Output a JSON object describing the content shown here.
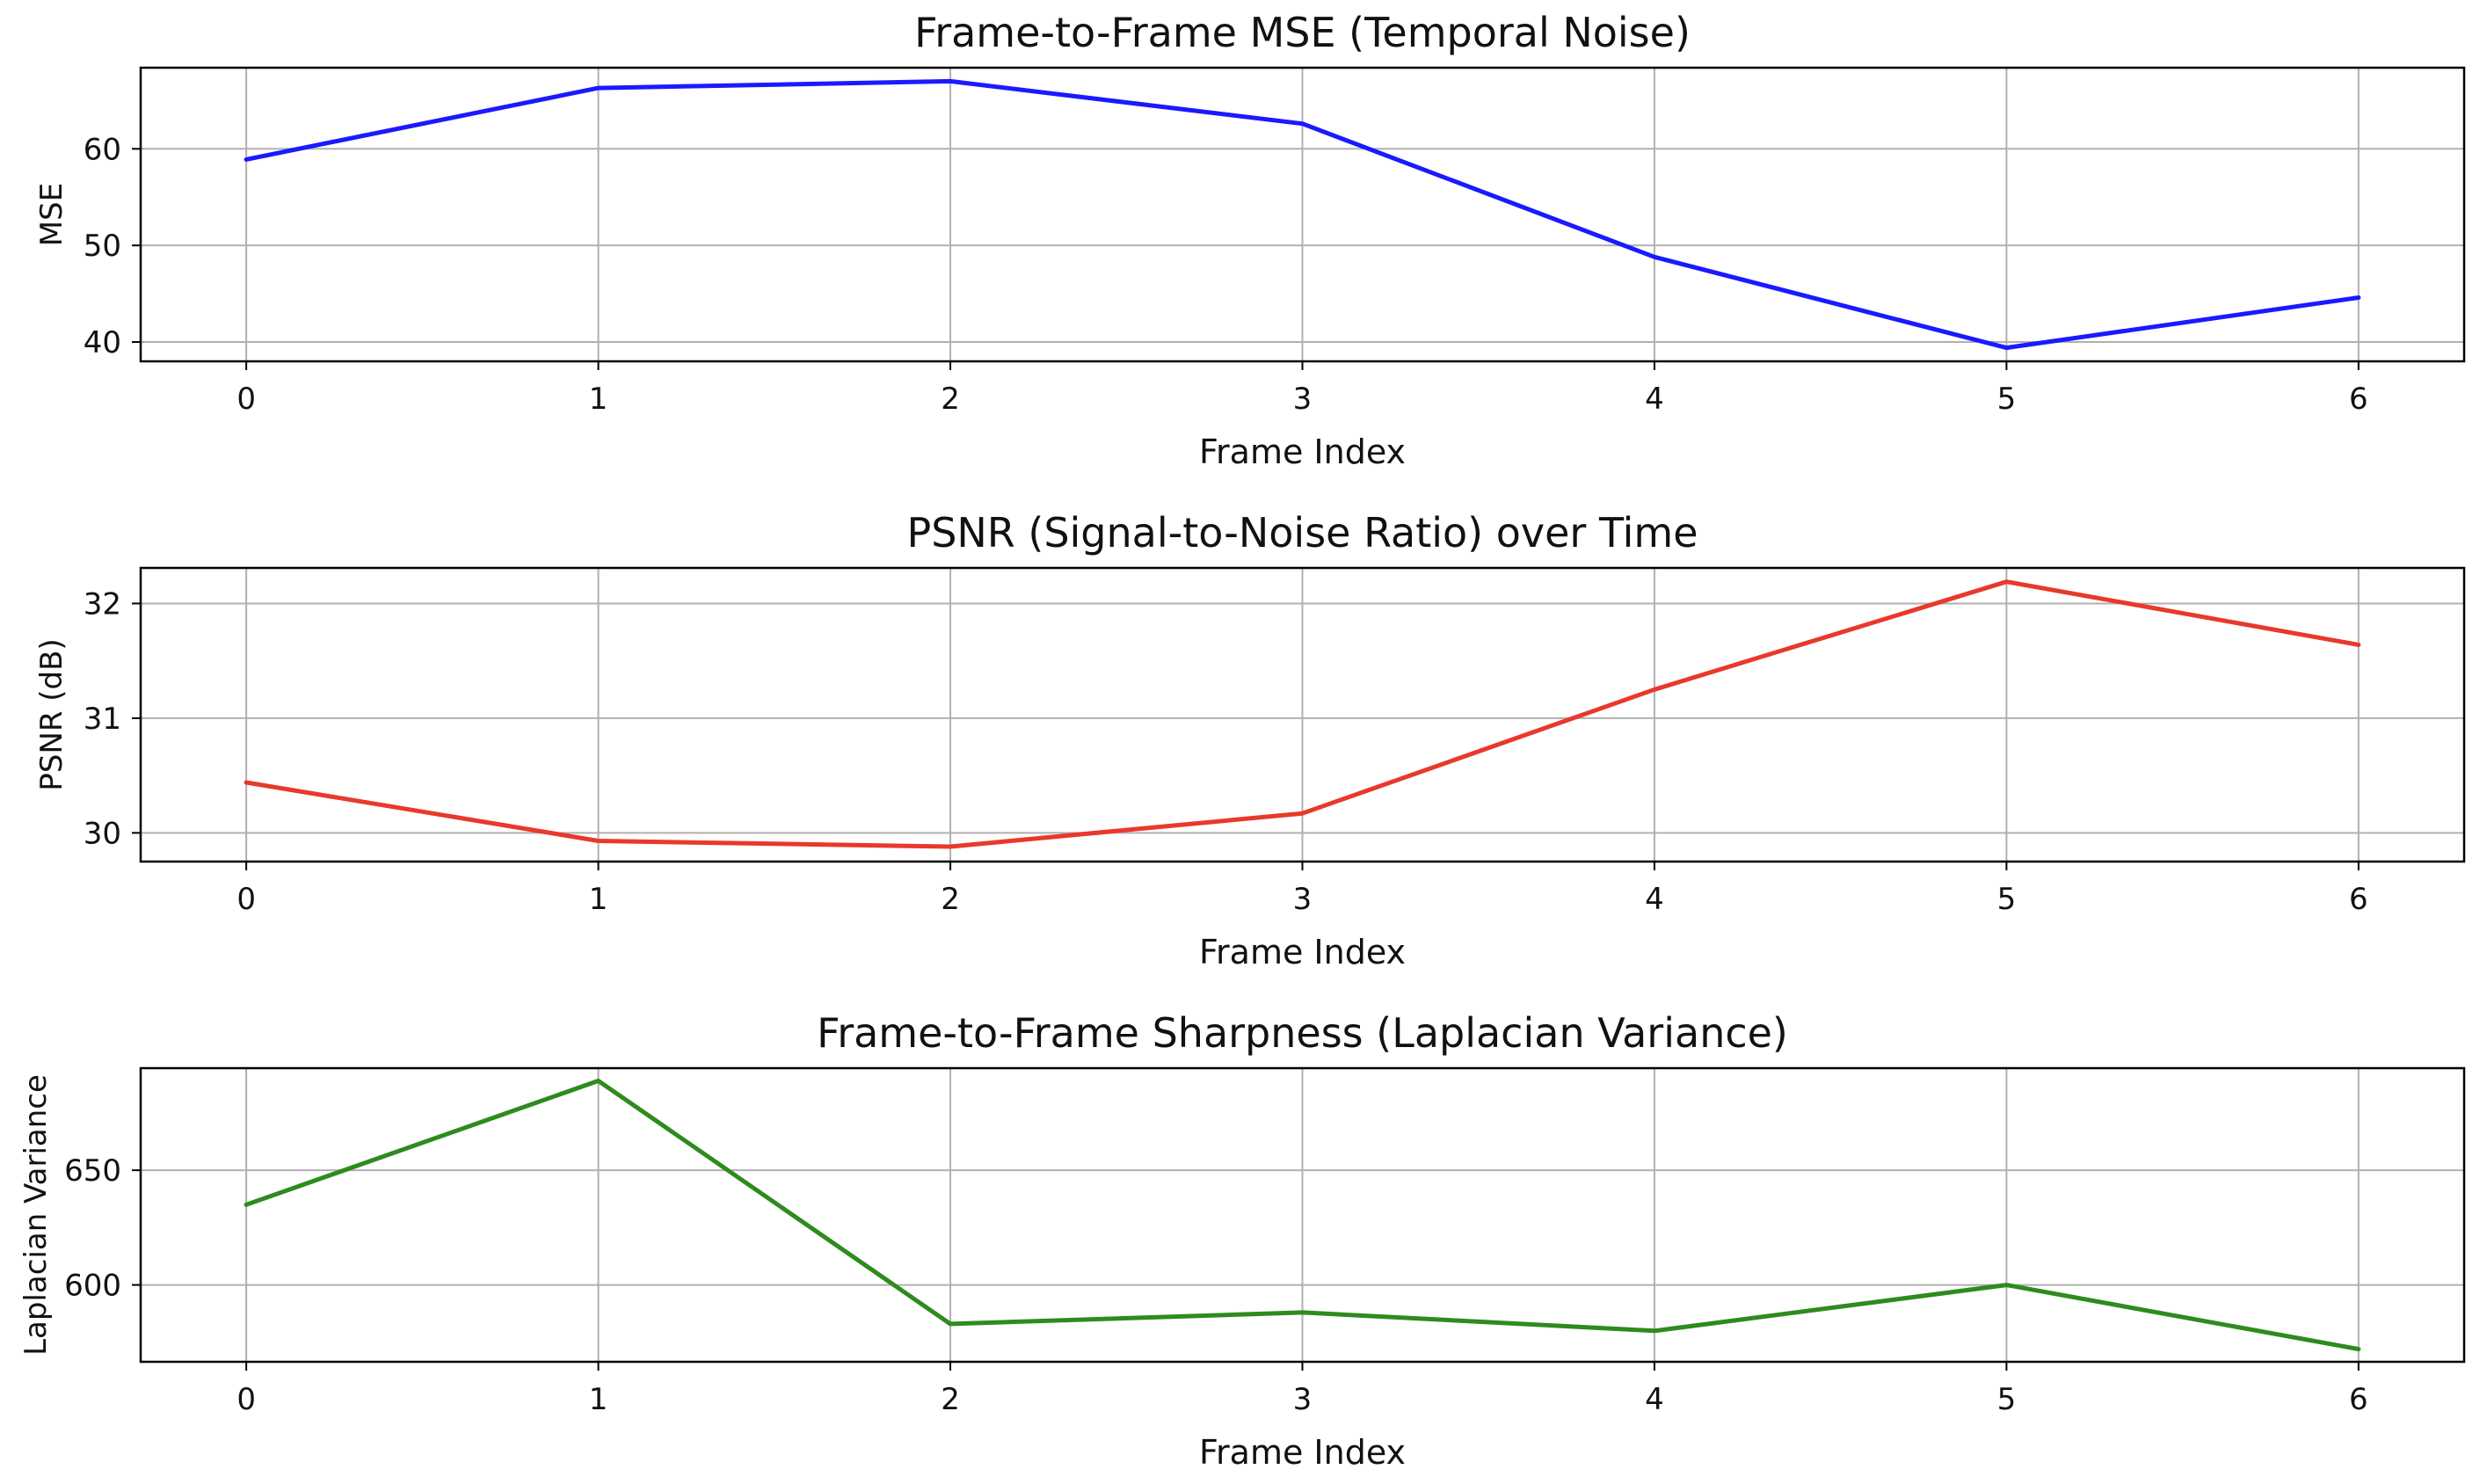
{
  "chart_data": [
    {
      "type": "line",
      "title": "Frame-to-Frame MSE (Temporal Noise)",
      "xlabel": "Frame Index",
      "ylabel": "MSE",
      "x": [
        0,
        1,
        2,
        3,
        4,
        5,
        6
      ],
      "series": [
        {
          "color": "#1a1aff",
          "values": [
            58.9,
            66.3,
            67.0,
            62.6,
            48.8,
            39.4,
            44.6
          ]
        }
      ],
      "xlim": [
        -0.3,
        6.3
      ],
      "ylim": [
        38.0,
        68.4
      ],
      "xticks": [
        0,
        1,
        2,
        3,
        4,
        5,
        6
      ],
      "yticks": [
        40,
        50,
        60
      ],
      "grid": true
    },
    {
      "type": "line",
      "title": "PSNR (Signal-to-Noise Ratio) over Time",
      "xlabel": "Frame Index",
      "ylabel": "PSNR (dB)",
      "x": [
        0,
        1,
        2,
        3,
        4,
        5,
        6
      ],
      "series": [
        {
          "color": "#e8392c",
          "values": [
            30.44,
            29.93,
            29.88,
            30.17,
            31.25,
            32.19,
            31.64
          ]
        }
      ],
      "xlim": [
        -0.3,
        6.3
      ],
      "ylim": [
        29.75,
        32.31
      ],
      "xticks": [
        0,
        1,
        2,
        3,
        4,
        5,
        6
      ],
      "yticks": [
        30,
        31,
        32
      ],
      "grid": true
    },
    {
      "type": "line",
      "title": "Frame-to-Frame Sharpness (Laplacian Variance)",
      "xlabel": "Frame Index",
      "ylabel": "Laplacian Variance",
      "x": [
        0,
        1,
        2,
        3,
        4,
        5,
        6
      ],
      "series": [
        {
          "color": "#2e8b1e",
          "values": [
            635,
            689,
            583,
            588,
            580,
            600,
            572
          ]
        }
      ],
      "xlim": [
        -0.3,
        6.3
      ],
      "ylim": [
        566.5,
        694.5
      ],
      "xticks": [
        0,
        1,
        2,
        3,
        4,
        5,
        6
      ],
      "yticks": [
        600,
        650
      ],
      "grid": true
    }
  ]
}
